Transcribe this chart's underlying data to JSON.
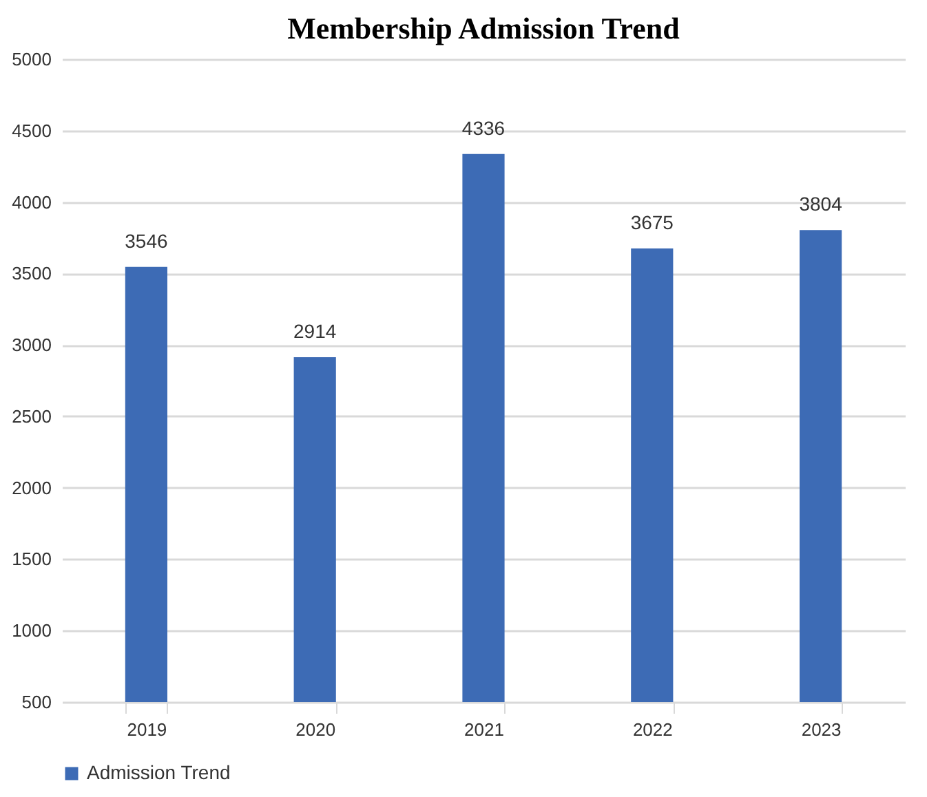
{
  "chart_data": {
    "type": "bar",
    "title": "Membership Admission Trend",
    "categories": [
      "2019",
      "2020",
      "2021",
      "2022",
      "2023"
    ],
    "series": [
      {
        "name": "Admission Trend",
        "color": "#3d6bb5",
        "values": [
          3546,
          2914,
          4336,
          3675,
          3804
        ]
      }
    ],
    "ylim": [
      500,
      5000
    ],
    "yticks": [
      500,
      1000,
      1500,
      2000,
      2500,
      3000,
      3500,
      4000,
      4500,
      5000
    ],
    "grid": "y",
    "legend": "bottom",
    "data_labels": true
  }
}
